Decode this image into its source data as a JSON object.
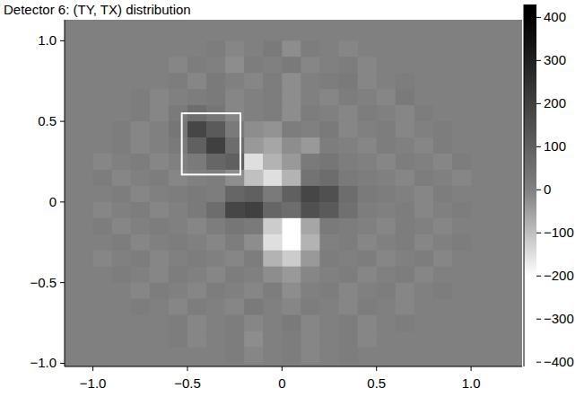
{
  "chart_data": {
    "type": "heatmap",
    "title": "Detector 6: (TY, TX) distribution",
    "x": [
      -1.05,
      -0.95,
      -0.85,
      -0.75,
      -0.65,
      -0.55,
      -0.45,
      -0.35,
      -0.25,
      -0.15,
      -0.05,
      0.05,
      0.15,
      0.25,
      0.35,
      0.45,
      0.55,
      0.65,
      0.75,
      0.85,
      0.95,
      1.05
    ],
    "y": [
      1.05,
      0.95,
      0.85,
      0.75,
      0.65,
      0.55,
      0.45,
      0.35,
      0.25,
      0.15,
      0.05,
      -0.05,
      -0.15,
      -0.25,
      -0.35,
      -0.45,
      -0.55,
      -0.65,
      -0.75,
      -0.85,
      -0.95
    ],
    "cells": [
      [
        null,
        null,
        null,
        null,
        null,
        null,
        null,
        null,
        null,
        null,
        null,
        null,
        null,
        null,
        null,
        null,
        null,
        null,
        null,
        null,
        null,
        null
      ],
      [
        null,
        null,
        null,
        null,
        null,
        null,
        null,
        10,
        -10,
        0,
        20,
        -20,
        10,
        0,
        -10,
        null,
        null,
        null,
        null,
        null,
        null,
        null
      ],
      [
        null,
        null,
        null,
        null,
        null,
        -10,
        10,
        0,
        -20,
        10,
        0,
        20,
        -10,
        0,
        10,
        -10,
        0,
        null,
        null,
        null,
        null,
        null
      ],
      [
        null,
        null,
        null,
        null,
        0,
        10,
        -10,
        20,
        0,
        -10,
        10,
        -20,
        0,
        10,
        20,
        -10,
        0,
        10,
        null,
        null,
        null,
        null
      ],
      [
        null,
        null,
        null,
        10,
        -10,
        0,
        10,
        20,
        -10,
        0,
        10,
        -20,
        0,
        -10,
        10,
        0,
        -10,
        20,
        0,
        null,
        null,
        null
      ],
      [
        null,
        null,
        0,
        10,
        -10,
        20,
        60,
        30,
        -10,
        0,
        10,
        -20,
        10,
        0,
        -10,
        10,
        0,
        -10,
        10,
        0,
        null,
        null
      ],
      [
        null,
        null,
        10,
        -10,
        0,
        30,
        180,
        120,
        20,
        -20,
        -30,
        10,
        0,
        20,
        -10,
        0,
        10,
        -10,
        0,
        10,
        null,
        null
      ],
      [
        null,
        0,
        10,
        -10,
        0,
        20,
        100,
        200,
        60,
        -40,
        -60,
        -20,
        -40,
        10,
        0,
        -10,
        10,
        0,
        -10,
        10,
        0,
        null
      ],
      [
        null,
        -10,
        0,
        10,
        -10,
        0,
        20,
        80,
        100,
        -150,
        -80,
        -40,
        20,
        30,
        10,
        0,
        -10,
        10,
        0,
        -10,
        10,
        null
      ],
      [
        null,
        10,
        -10,
        0,
        10,
        -10,
        0,
        10,
        -20,
        -100,
        -150,
        -80,
        40,
        60,
        20,
        10,
        0,
        -10,
        10,
        0,
        -10,
        null
      ],
      [
        null,
        0,
        10,
        -10,
        0,
        10,
        20,
        10,
        80,
        100,
        20,
        100,
        180,
        150,
        60,
        20,
        10,
        0,
        -10,
        10,
        0,
        null
      ],
      [
        null,
        -10,
        0,
        10,
        -10,
        0,
        20,
        60,
        180,
        200,
        80,
        60,
        150,
        120,
        50,
        10,
        0,
        10,
        -10,
        0,
        10,
        null
      ],
      [
        null,
        10,
        -10,
        0,
        10,
        0,
        -10,
        10,
        30,
        20,
        -120,
        -200,
        -60,
        20,
        10,
        0,
        -10,
        10,
        0,
        -10,
        0,
        null
      ],
      [
        null,
        0,
        10,
        -10,
        0,
        10,
        0,
        -10,
        10,
        -20,
        -150,
        -220,
        -80,
        0,
        10,
        -10,
        0,
        10,
        -10,
        0,
        10,
        null
      ],
      [
        null,
        -10,
        0,
        10,
        -10,
        0,
        10,
        0,
        -10,
        10,
        -80,
        -120,
        -40,
        10,
        0,
        10,
        -10,
        0,
        10,
        -10,
        0,
        null
      ],
      [
        null,
        null,
        10,
        0,
        -10,
        10,
        0,
        -10,
        10,
        0,
        -20,
        -40,
        -10,
        0,
        10,
        -10,
        0,
        10,
        -10,
        0,
        null,
        null
      ],
      [
        null,
        null,
        0,
        -10,
        10,
        0,
        -10,
        10,
        0,
        -10,
        10,
        -20,
        0,
        10,
        -10,
        0,
        10,
        -10,
        0,
        10,
        null,
        null
      ],
      [
        null,
        null,
        null,
        10,
        0,
        -10,
        10,
        0,
        -10,
        20,
        0,
        -10,
        10,
        0,
        -10,
        10,
        0,
        -10,
        0,
        null,
        null,
        null
      ],
      [
        null,
        null,
        null,
        null,
        0,
        10,
        -10,
        0,
        10,
        -10,
        0,
        20,
        -10,
        0,
        10,
        -10,
        0,
        10,
        null,
        null,
        null,
        null
      ],
      [
        null,
        null,
        null,
        null,
        null,
        10,
        -10,
        0,
        10,
        -20,
        0,
        10,
        -10,
        0,
        10,
        -10,
        0,
        null,
        null,
        null,
        null,
        null
      ],
      [
        null,
        null,
        null,
        null,
        null,
        null,
        null,
        0,
        10,
        -10,
        0,
        10,
        -10,
        0,
        10,
        null,
        null,
        null,
        null,
        null,
        null,
        null
      ]
    ],
    "xlim": [
      -1.15,
      1.27
    ],
    "ylim": [
      -1.02,
      1.13
    ],
    "xticks": [
      {
        "value": -1,
        "label": "−1.0"
      },
      {
        "value": -0.5,
        "label": "−0.5"
      },
      0,
      {
        "value": 0.5,
        "label": "0.5"
      },
      {
        "value": 1,
        "label": "1.0"
      }
    ],
    "yticks": [
      {
        "value": -1,
        "label": "−1.0"
      },
      {
        "value": -0.5,
        "label": "−0.5"
      },
      0,
      {
        "value": 0.5,
        "label": "0.5"
      },
      {
        "value": 1,
        "label": "1.0"
      }
    ],
    "color_range": [
      -410,
      430
    ],
    "color_ticks": [
      400,
      300,
      200,
      100,
      0,
      {
        "value": -100,
        "label": "−100"
      },
      {
        "value": -200,
        "label": "−200"
      },
      {
        "value": -300,
        "label": "−300"
      },
      {
        "value": -400,
        "label": "−400"
      }
    ],
    "highlight_box": {
      "x": [
        -0.53,
        -0.22
      ],
      "y": [
        0.17,
        0.55
      ]
    }
  }
}
